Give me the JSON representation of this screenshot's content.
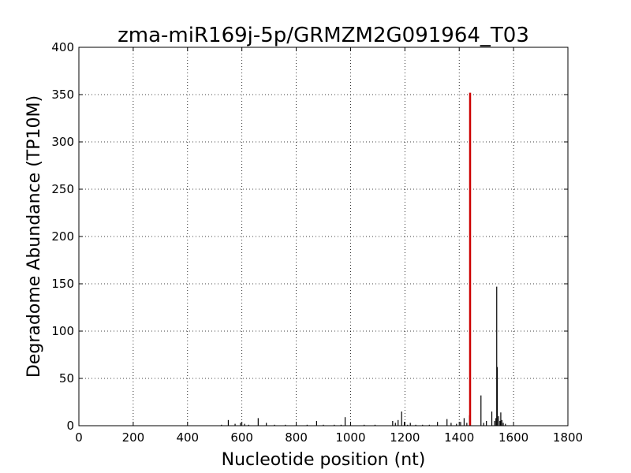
{
  "chart_data": {
    "type": "bar",
    "title": "zma-miR169j-5p/GRMZM2G091964_T03",
    "xlabel": "Nucleotide position (nt)",
    "ylabel": "Degradome Abundance (TP10M)",
    "xlim": [
      0,
      1800
    ],
    "ylim": [
      0,
      400
    ],
    "xticks": [
      0,
      200,
      400,
      600,
      800,
      1000,
      1200,
      1400,
      1600,
      1800
    ],
    "yticks": [
      0,
      50,
      100,
      150,
      200,
      250,
      300,
      350,
      400
    ],
    "grid": true,
    "series": [
      {
        "color": "#000000",
        "points": [
          [
            525,
            1
          ],
          [
            550,
            6
          ],
          [
            575,
            2
          ],
          [
            595,
            3
          ],
          [
            610,
            2
          ],
          [
            625,
            1
          ],
          [
            660,
            8
          ],
          [
            690,
            3
          ],
          [
            720,
            1
          ],
          [
            760,
            1
          ],
          [
            800,
            1
          ],
          [
            840,
            1
          ],
          [
            875,
            5
          ],
          [
            900,
            1
          ],
          [
            940,
            1
          ],
          [
            965,
            1
          ],
          [
            980,
            9
          ],
          [
            1000,
            1
          ],
          [
            1050,
            1
          ],
          [
            1090,
            1
          ],
          [
            1155,
            5
          ],
          [
            1165,
            3
          ],
          [
            1175,
            6
          ],
          [
            1188,
            15
          ],
          [
            1198,
            4
          ],
          [
            1210,
            1
          ],
          [
            1220,
            3
          ],
          [
            1240,
            1
          ],
          [
            1265,
            1
          ],
          [
            1290,
            1
          ],
          [
            1320,
            4
          ],
          [
            1355,
            7
          ],
          [
            1370,
            3
          ],
          [
            1390,
            2
          ],
          [
            1405,
            4
          ],
          [
            1418,
            8
          ],
          [
            1428,
            3
          ],
          [
            1438,
            11
          ],
          [
            1480,
            32
          ],
          [
            1490,
            3
          ],
          [
            1500,
            5
          ],
          [
            1520,
            15
          ],
          [
            1530,
            5
          ],
          [
            1535,
            8
          ],
          [
            1538,
            147
          ],
          [
            1540,
            62
          ],
          [
            1545,
            10
          ],
          [
            1550,
            5
          ],
          [
            1553,
            14
          ],
          [
            1557,
            6
          ],
          [
            1562,
            3
          ],
          [
            1570,
            2
          ]
        ]
      },
      {
        "color": "#cc0000",
        "points": [
          [
            1440,
            352
          ]
        ]
      }
    ]
  }
}
